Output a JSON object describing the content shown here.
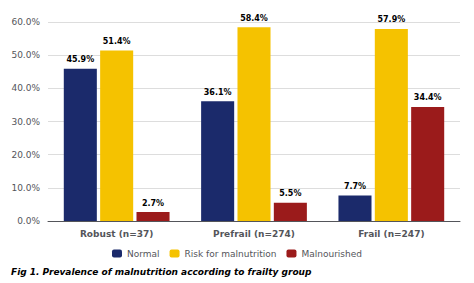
{
  "chart_data": {
    "type": "bar",
    "title": "Fig 1. Prevalence of malnutrition according to frailty group",
    "categories": [
      "Robust (n=37)",
      "Prefrail (n=274)",
      "Frail (n=247)"
    ],
    "series": [
      {
        "name": "Normal",
        "color": "#1b2a6b",
        "values": [
          45.9,
          36.1,
          7.7
        ],
        "value_labels": [
          "45.9%",
          "36.1%",
          "7.7%"
        ]
      },
      {
        "name": "Risk for malnutrition",
        "color": "#f5c200",
        "values": [
          51.4,
          58.4,
          57.9
        ],
        "value_labels": [
          "51.4%",
          "58.4%",
          "57.9%"
        ]
      },
      {
        "name": "Malnourished",
        "color": "#9b1b1b",
        "values": [
          2.7,
          5.5,
          34.4
        ],
        "value_labels": [
          "2.7%",
          "5.5%",
          "34.4%"
        ]
      }
    ],
    "ylim": [
      0,
      60
    ],
    "yticks": [
      {
        "value": 0,
        "label": "0.0%"
      },
      {
        "value": 10,
        "label": "10.0%"
      },
      {
        "value": 20,
        "label": "20.0%"
      },
      {
        "value": 30,
        "label": "30.0%"
      },
      {
        "value": 40,
        "label": "40.0%"
      },
      {
        "value": 50,
        "label": "50.0%"
      },
      {
        "value": 60,
        "label": "60.0%"
      }
    ],
    "grid": true,
    "legend": "bottom",
    "data_labels": true
  }
}
